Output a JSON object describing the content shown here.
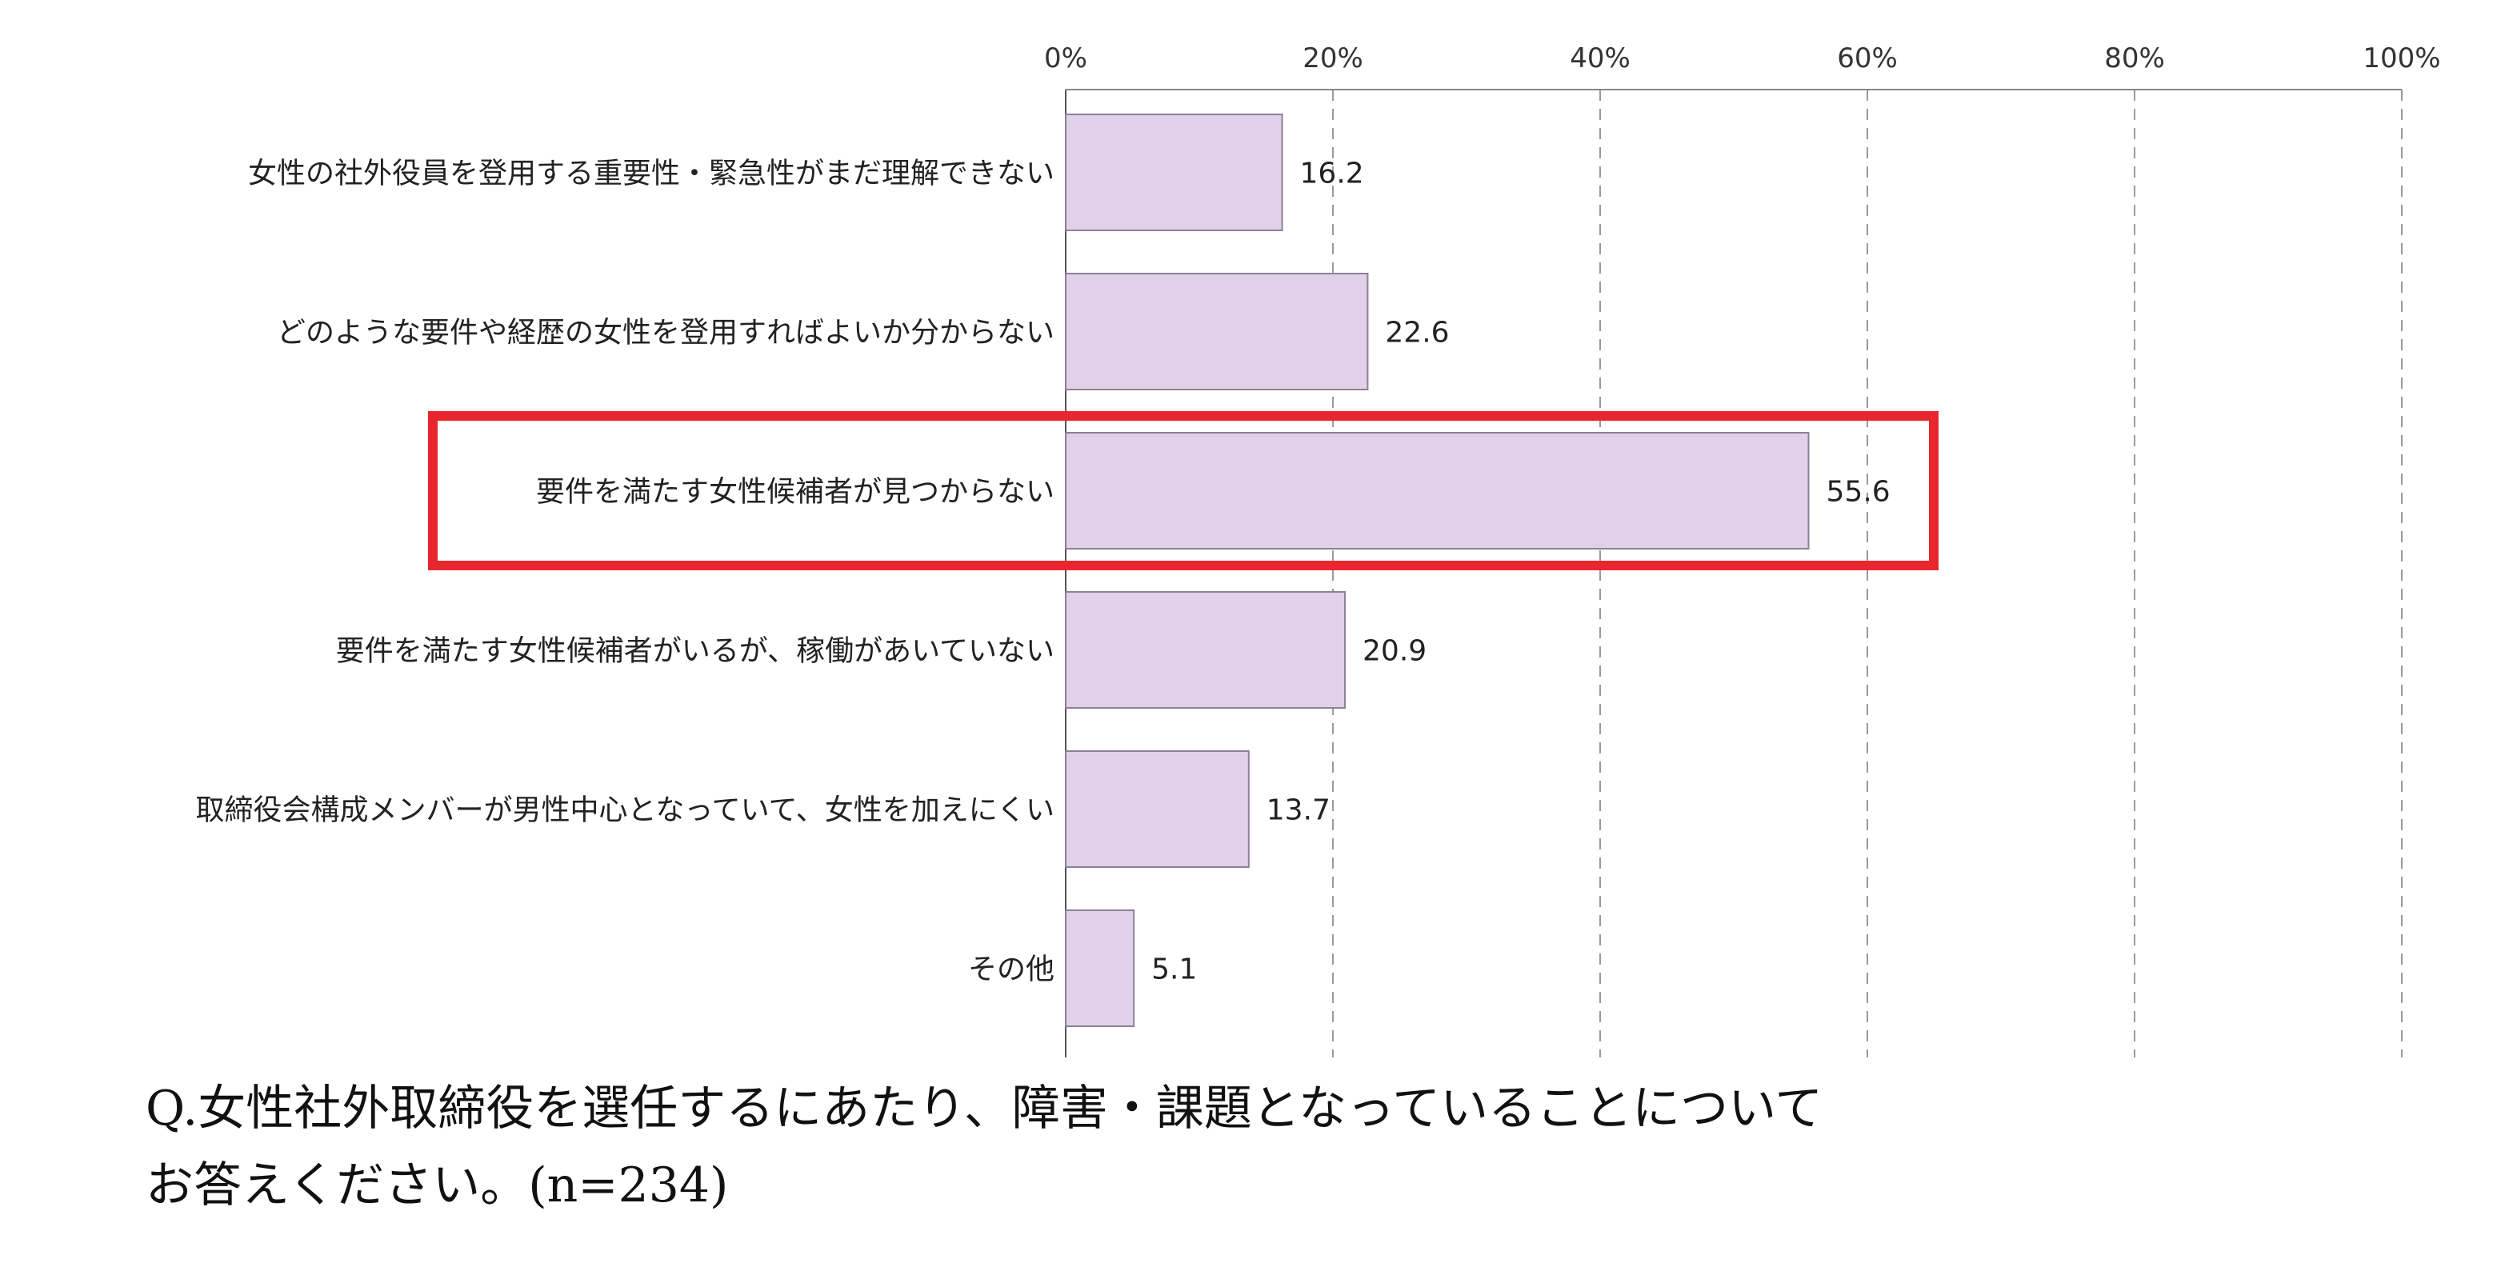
{
  "chart_data": {
    "type": "bar",
    "orientation": "horizontal",
    "categories": [
      "女性の社外役員を登用する重要性・緊急性がまだ理解できない",
      "どのような要件や経歴の女性を登用すればよいか分からない",
      "要件を満たす女性候補者が見つからない",
      "要件を満たす女性候補者がいるが、稼働があいていない",
      "取締役会構成メンバーが男性中心となっていて、女性を加えにくい",
      "その他"
    ],
    "values": [
      16.2,
      22.6,
      55.6,
      20.9,
      13.7,
      5.1
    ],
    "value_labels": [
      "16.2",
      "22.6",
      "55.6",
      "20.9",
      "13.7",
      "5.1"
    ],
    "xlim": [
      0,
      100
    ],
    "x_ticks": [
      0,
      20,
      40,
      60,
      80,
      100
    ],
    "x_tick_labels": [
      "0%",
      "20%",
      "40%",
      "60%",
      "80%",
      "100%"
    ],
    "grid": true,
    "highlighted_index": 2,
    "colors": {
      "bar": "#e0d0e8",
      "bar_border": "#8c8098",
      "highlight": "#e8262e",
      "grid": "#9a9a9a"
    },
    "xlabel": "",
    "ylabel": ""
  },
  "question": {
    "line1": "Q.女性社外取締役を選任するにあたり、障害・課題となっていることについて",
    "line2": "お答えください。(n=234)"
  }
}
